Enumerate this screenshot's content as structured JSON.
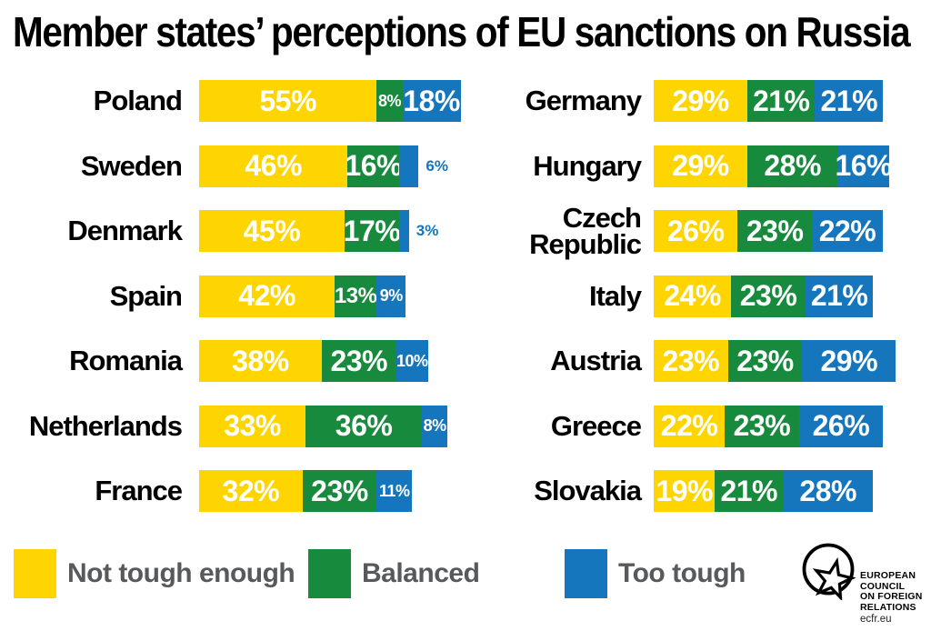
{
  "title": "Member states’ perceptions of EU sanctions on Russia",
  "chart_data": {
    "type": "bar",
    "orientation": "horizontal-stacked",
    "unit": "%",
    "title": "Member states’ perceptions of EU sanctions on Russia",
    "series_names": [
      "Not tough enough",
      "Balanced",
      "Too tough"
    ],
    "series_colors": [
      "#FFD500",
      "#178A3D",
      "#1576BD"
    ],
    "value_label_color_inside": "#FFFFFF",
    "value_label_color_outside": "#1576BD",
    "columns": [
      {
        "rows": [
          {
            "country": "Poland",
            "values": [
              55,
              8,
              18
            ]
          },
          {
            "country": "Sweden",
            "values": [
              46,
              16,
              6
            ]
          },
          {
            "country": "Denmark",
            "values": [
              45,
              17,
              3
            ]
          },
          {
            "country": "Spain",
            "values": [
              42,
              13,
              9
            ]
          },
          {
            "country": "Romania",
            "values": [
              38,
              23,
              10
            ]
          },
          {
            "country": "Netherlands",
            "values": [
              33,
              36,
              8
            ]
          },
          {
            "country": "France",
            "values": [
              32,
              23,
              11
            ]
          }
        ]
      },
      {
        "rows": [
          {
            "country": "Germany",
            "values": [
              29,
              21,
              21
            ]
          },
          {
            "country": "Hungary",
            "values": [
              29,
              28,
              16
            ]
          },
          {
            "country": "Czech Republic",
            "values": [
              26,
              23,
              22
            ]
          },
          {
            "country": "Italy",
            "values": [
              24,
              23,
              21
            ]
          },
          {
            "country": "Austria",
            "values": [
              23,
              23,
              29
            ]
          },
          {
            "country": "Greece",
            "values": [
              22,
              23,
              26
            ]
          },
          {
            "country": "Slovakia",
            "values": [
              19,
              21,
              28
            ]
          }
        ]
      }
    ]
  },
  "legend": {
    "items": [
      {
        "label": "Not tough enough",
        "color": "#FFD500"
      },
      {
        "label": "Balanced",
        "color": "#178A3D"
      },
      {
        "label": "Too tough",
        "color": "#1576BD"
      }
    ],
    "text_color": "#58595b"
  },
  "logo": {
    "lines": [
      "EUROPEAN",
      "COUNCIL",
      "ON FOREIGN",
      "RELATIONS"
    ],
    "url_text": "ecfr.eu"
  }
}
